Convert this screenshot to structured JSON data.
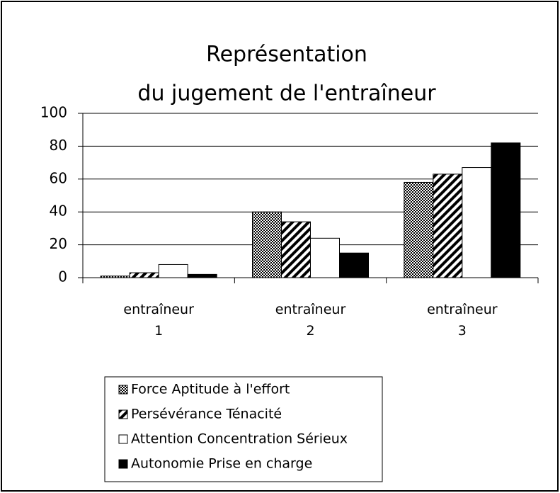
{
  "chart_data": {
    "type": "bar",
    "title": [
      "Représentation",
      "du jugement de l'entraîneur"
    ],
    "categories": [
      "entraîneur 1",
      "entraîneur 2",
      "entraîneur 3"
    ],
    "series": [
      {
        "name": "Force Aptitude à l'effort",
        "color": "#000000",
        "pattern": "checker",
        "values": [
          1,
          40,
          58
        ]
      },
      {
        "name": "Persévérance Ténacité",
        "color": "#000000",
        "pattern": "diagonal",
        "values": [
          3,
          34,
          63
        ]
      },
      {
        "name": "Attention Concentration Sérieux",
        "color": "#ffffff",
        "pattern": "solid",
        "values": [
          8,
          24,
          67
        ]
      },
      {
        "name": "Autonomie Prise en charge",
        "color": "#000000",
        "pattern": "solid",
        "values": [
          2,
          15,
          82
        ]
      }
    ],
    "ylim": [
      0,
      100
    ],
    "yticks": [
      0,
      20,
      40,
      60,
      80,
      100
    ],
    "grid": true,
    "legend": "bottom"
  }
}
